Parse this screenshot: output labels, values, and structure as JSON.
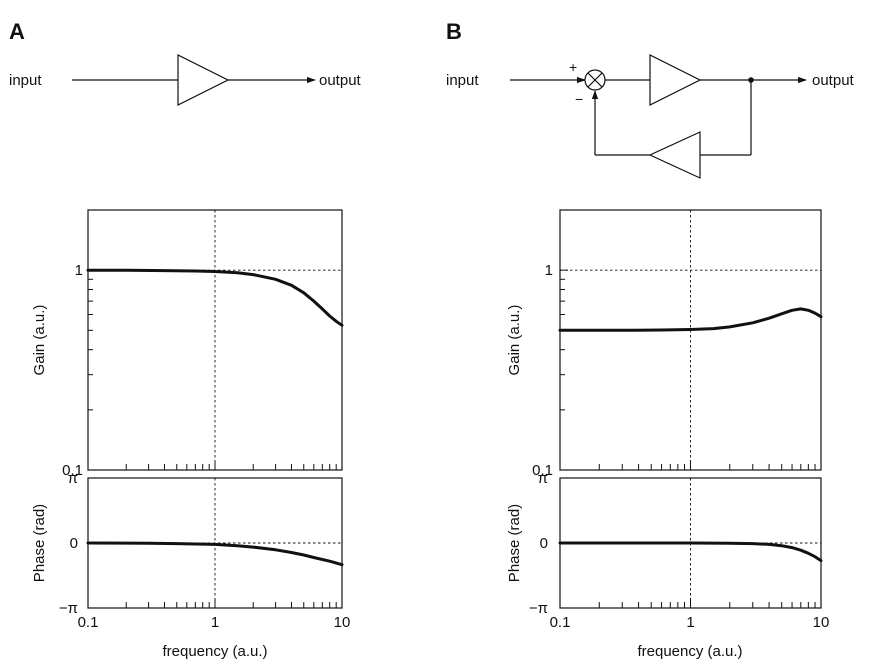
{
  "panels": {
    "A": {
      "letter": "A",
      "diagram": {
        "input_label": "input",
        "output_label": "output"
      }
    },
    "B": {
      "letter": "B",
      "diagram": {
        "input_label": "input",
        "output_label": "output",
        "plus_sign": "+",
        "minus_sign": "−"
      }
    }
  },
  "colors": {
    "ink": "#111111",
    "background": "#ffffff"
  },
  "chart_data": [
    {
      "type": "line",
      "panel": "A",
      "title": "",
      "xlabel": "",
      "ylabel": "Gain (a.u.)",
      "x_scale": "log",
      "y_scale": "log",
      "xlim": [
        0.1,
        10
      ],
      "ylim": [
        0.1,
        2
      ],
      "y_ticks": [
        {
          "value": 0.1,
          "label": "0.1"
        },
        {
          "value": 1,
          "label": "1"
        }
      ],
      "reference_lines": {
        "x": 1,
        "y": 1
      },
      "series": [
        {
          "x": [
            0.1,
            0.2,
            0.4,
            0.7,
            1.0,
            1.5,
            2.0,
            3.0,
            4.0,
            5.0,
            6.0,
            7.0,
            8.0,
            9.0,
            10.0
          ],
          "y": [
            1.0,
            1.0,
            0.995,
            0.99,
            0.985,
            0.97,
            0.95,
            0.9,
            0.84,
            0.77,
            0.7,
            0.64,
            0.59,
            0.555,
            0.53
          ]
        }
      ]
    },
    {
      "type": "line",
      "panel": "A",
      "title": "",
      "xlabel": "frequency (a.u.)",
      "ylabel": "Phase (rad)",
      "x_scale": "log",
      "xlim": [
        0.1,
        10
      ],
      "ylim": [
        -3.14159,
        3.14159
      ],
      "x_ticks": [
        {
          "value": 0.1,
          "label": "0.1"
        },
        {
          "value": 1,
          "label": "1"
        },
        {
          "value": 10,
          "label": "10"
        }
      ],
      "y_ticks": [
        {
          "value": 3.14159,
          "label": "π"
        },
        {
          "value": 0,
          "label": "0"
        },
        {
          "value": -3.14159,
          "label": "−π"
        }
      ],
      "reference_lines": {
        "x": 1,
        "y": 0
      },
      "series": [
        {
          "x": [
            0.1,
            0.3,
            0.5,
            1.0,
            1.5,
            2.0,
            3.0,
            4.0,
            5.0,
            6.0,
            8.0,
            10.0
          ],
          "y": [
            0.0,
            -0.01,
            -0.03,
            -0.07,
            -0.13,
            -0.2,
            -0.33,
            -0.46,
            -0.58,
            -0.7,
            -0.88,
            -1.05
          ]
        }
      ]
    },
    {
      "type": "line",
      "panel": "B",
      "title": "",
      "xlabel": "",
      "ylabel": "Gain (a.u.)",
      "x_scale": "log",
      "y_scale": "log",
      "xlim": [
        0.1,
        10
      ],
      "ylim": [
        0.1,
        2
      ],
      "y_ticks": [
        {
          "value": 0.1,
          "label": "0.1"
        },
        {
          "value": 1,
          "label": "1"
        }
      ],
      "reference_lines": {
        "x": 1,
        "y": 1
      },
      "series": [
        {
          "x": [
            0.1,
            0.3,
            0.6,
            1.0,
            1.5,
            2.0,
            3.0,
            4.0,
            5.0,
            6.0,
            7.0,
            8.0,
            9.0,
            10.0
          ],
          "y": [
            0.5,
            0.5,
            0.502,
            0.505,
            0.51,
            0.52,
            0.545,
            0.575,
            0.605,
            0.63,
            0.64,
            0.63,
            0.61,
            0.585
          ]
        }
      ]
    },
    {
      "type": "line",
      "panel": "B",
      "title": "",
      "xlabel": "frequency (a.u.)",
      "ylabel": "Phase (rad)",
      "x_scale": "log",
      "xlim": [
        0.1,
        10
      ],
      "ylim": [
        -3.14159,
        3.14159
      ],
      "x_ticks": [
        {
          "value": 0.1,
          "label": "0.1"
        },
        {
          "value": 1,
          "label": "1"
        },
        {
          "value": 10,
          "label": "10"
        }
      ],
      "y_ticks": [
        {
          "value": 3.14159,
          "label": "π"
        },
        {
          "value": 0,
          "label": "0"
        },
        {
          "value": -3.14159,
          "label": "−π"
        }
      ],
      "reference_lines": {
        "x": 1,
        "y": 0
      },
      "series": [
        {
          "x": [
            0.1,
            0.5,
            1.0,
            2.0,
            3.0,
            4.0,
            5.0,
            6.0,
            7.0,
            8.0,
            9.0,
            10.0
          ],
          "y": [
            0.0,
            0.0,
            0.0,
            -0.01,
            -0.03,
            -0.07,
            -0.13,
            -0.22,
            -0.35,
            -0.5,
            -0.66,
            -0.85
          ]
        }
      ]
    }
  ]
}
